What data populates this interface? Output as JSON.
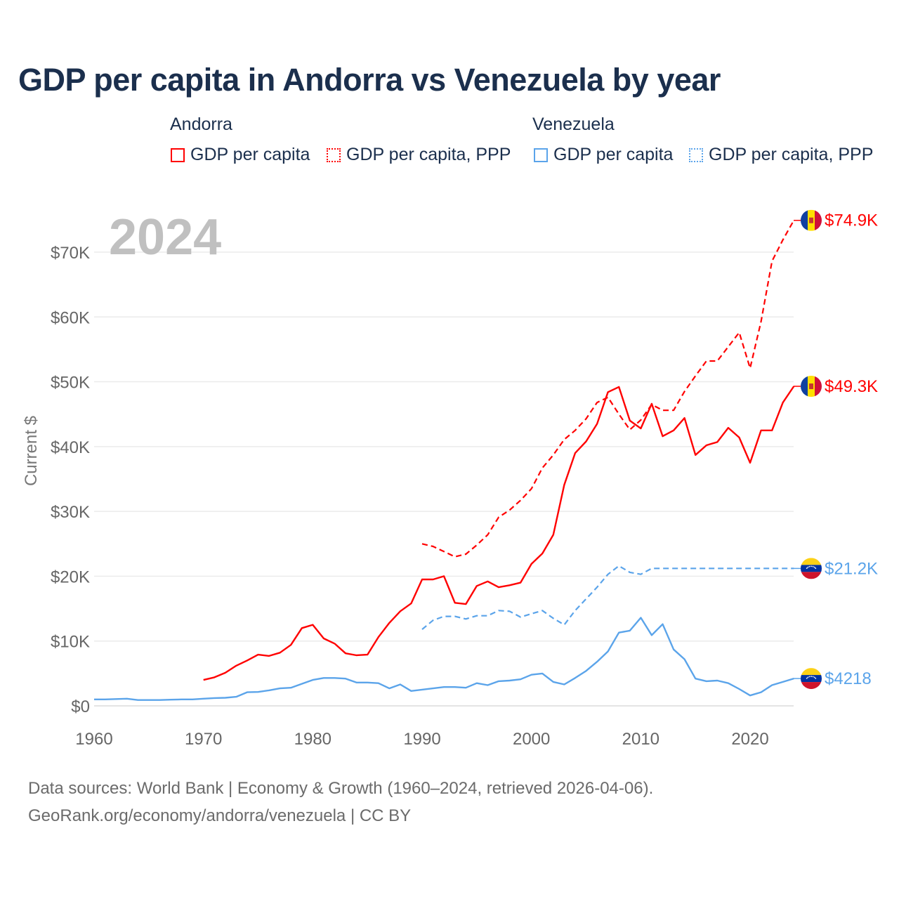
{
  "chart_data": {
    "type": "line",
    "title": "GDP per capita in Andorra vs Venezuela by year",
    "ylabel": "Current $",
    "xlabel": "",
    "xlim": [
      1960,
      2024
    ],
    "ylim": [
      0,
      75000
    ],
    "year_watermark": "2024",
    "x_ticks": [
      "1960",
      "1970",
      "1980",
      "1990",
      "2000",
      "2010",
      "2020"
    ],
    "y_ticks": [
      {
        "v": 0,
        "label": "$0"
      },
      {
        "v": 10000,
        "label": "$10K"
      },
      {
        "v": 20000,
        "label": "$20K"
      },
      {
        "v": 30000,
        "label": "$30K"
      },
      {
        "v": 40000,
        "label": "$40K"
      },
      {
        "v": 50000,
        "label": "$50K"
      },
      {
        "v": 60000,
        "label": "$60K"
      },
      {
        "v": 70000,
        "label": "$70K"
      }
    ],
    "legend": {
      "groups": [
        {
          "name": "Andorra",
          "items": [
            "GDP per capita",
            "GDP per capita, PPP"
          ]
        },
        {
          "name": "Venezuela",
          "items": [
            "GDP per capita",
            "GDP per capita, PPP"
          ]
        }
      ],
      "placement": "top"
    },
    "series": [
      {
        "name": "Andorra GDP per capita",
        "country": "Andorra",
        "color": "#ff0000",
        "dash": false,
        "start": 1970,
        "values": [
          4.0,
          4.4,
          5.1,
          6.2,
          7.0,
          7.9,
          7.7,
          8.2,
          9.4,
          12.0,
          12.5,
          10.4,
          9.6,
          8.1,
          7.8,
          7.9,
          10.6,
          12.8,
          14.6,
          15.8,
          19.5,
          19.5,
          20.0,
          15.9,
          15.7,
          18.5,
          19.2,
          18.3,
          18.6,
          19.0,
          21.9,
          23.5,
          26.4,
          34.1,
          39.0,
          40.8,
          43.5,
          48.4,
          49.2,
          44.0,
          42.8,
          46.6,
          41.6,
          42.5,
          44.4,
          38.7,
          40.2,
          40.7,
          42.9,
          41.4,
          37.5,
          42.5,
          42.5,
          46.8,
          49.3
        ]
      },
      {
        "name": "Andorra GDP per capita, PPP",
        "country": "Andorra",
        "color": "#ff0000",
        "dash": true,
        "start": 1990,
        "values": [
          25.0,
          24.6,
          23.8,
          23.0,
          23.4,
          24.8,
          26.4,
          29.1,
          30.2,
          31.7,
          33.5,
          36.7,
          38.7,
          41.1,
          42.5,
          44.3,
          46.8,
          47.6,
          45.0,
          42.6,
          44.1,
          46.5,
          45.6,
          45.6,
          48.5,
          50.9,
          53.2,
          53.2,
          55.4,
          57.6,
          52.1,
          59.3,
          68.6,
          71.9,
          74.9
        ]
      },
      {
        "name": "Venezuela GDP per capita",
        "country": "Venezuela",
        "color": "#5ba4ea",
        "dash": false,
        "start": 1960,
        "values": [
          1.0,
          1.0,
          1.05,
          1.1,
          0.9,
          0.9,
          0.9,
          0.95,
          1.0,
          1.0,
          1.1,
          1.2,
          1.25,
          1.4,
          2.1,
          2.15,
          2.4,
          2.7,
          2.8,
          3.4,
          4.0,
          4.3,
          4.3,
          4.2,
          3.6,
          3.6,
          3.5,
          2.7,
          3.3,
          2.3,
          2.5,
          2.7,
          2.9,
          2.9,
          2.8,
          3.5,
          3.2,
          3.8,
          3.9,
          4.1,
          4.8,
          5.0,
          3.7,
          3.3,
          4.3,
          5.4,
          6.8,
          8.4,
          11.3,
          11.6,
          13.6,
          10.9,
          12.6,
          8.7,
          7.2,
          4.2,
          3.8,
          3.9,
          3.5,
          2.6,
          1.6,
          2.1,
          3.2,
          3.7,
          4.218
        ]
      },
      {
        "name": "Venezuela GDP per capita, PPP",
        "country": "Venezuela",
        "color": "#5ba4ea",
        "dash": true,
        "start": 1990,
        "values": [
          11.8,
          13.2,
          13.8,
          13.8,
          13.4,
          13.9,
          13.9,
          14.7,
          14.6,
          13.7,
          14.2,
          14.7,
          13.5,
          12.5,
          14.7,
          16.5,
          18.3,
          20.3,
          21.6,
          20.6,
          20.3,
          21.2,
          21.2,
          21.2,
          21.2,
          21.2,
          21.2,
          21.2,
          21.2,
          21.2,
          21.2,
          21.2,
          21.2,
          21.2,
          21.2
        ]
      }
    ],
    "value_unit": "thousand USD",
    "end_labels": [
      {
        "series": 1,
        "text": "$74.9K"
      },
      {
        "series": 0,
        "text": "$49.3K"
      },
      {
        "series": 3,
        "text": "$21.2K"
      },
      {
        "series": 2,
        "text": "$4218"
      }
    ]
  },
  "footer": {
    "line1": "Data sources: World Bank | Economy & Growth (1960–2024, retrieved 2026-04-06).",
    "line2": "GeoRank.org/economy/andorra/venezuela | CC BY"
  }
}
